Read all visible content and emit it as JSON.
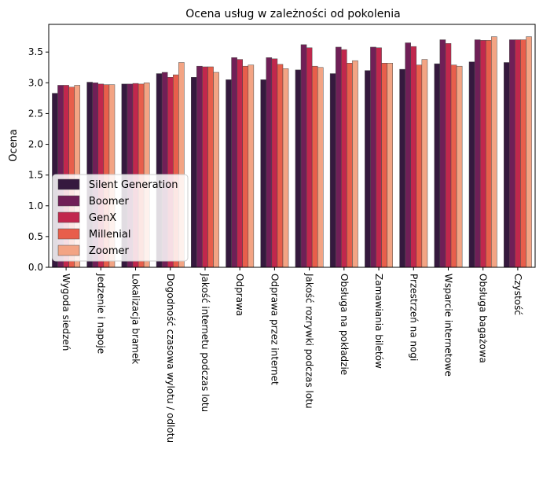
{
  "chart_data": {
    "type": "bar",
    "title": "Ocena usług w zależności od pokolenia",
    "xlabel": "",
    "ylabel": "Ocena",
    "ylim": [
      0,
      3.95
    ],
    "yticks": [
      "0.0",
      "0.5",
      "1.0",
      "1.5",
      "2.0",
      "2.5",
      "3.0",
      "3.5"
    ],
    "grid": false,
    "legend_position": "lower-left",
    "categories": [
      "Wygoda siedzeń",
      "Jedzenie i napoje",
      "Lokalizacja bramek",
      "Dogodność czasowa wylotu / odlotu",
      "Jakość internetu podczas lotu",
      "Odprawa",
      "Odprawa przez internet",
      "Jakość rozrywki podczas lotu",
      "Obsługa na pokładzie",
      "Zamawiania biletów",
      "Przestrzeń na nogi",
      "Wsparcie internetowe",
      "Obsługa bagażowa",
      "Czystość"
    ],
    "series": [
      {
        "name": "Silent Generation",
        "color": "#35193e",
        "values": [
          2.83,
          3.01,
          2.98,
          3.15,
          3.09,
          3.05,
          3.05,
          3.21,
          3.15,
          3.2,
          3.22,
          3.31,
          3.34,
          3.33
        ]
      },
      {
        "name": "Boomer",
        "color": "#701f57",
        "values": [
          2.96,
          3.0,
          2.98,
          3.17,
          3.27,
          3.41,
          3.41,
          3.62,
          3.58,
          3.58,
          3.65,
          3.7,
          3.7,
          3.7
        ]
      },
      {
        "name": "GenX",
        "color": "#c1274d",
        "values": [
          2.96,
          2.98,
          2.99,
          3.09,
          3.26,
          3.38,
          3.39,
          3.57,
          3.54,
          3.57,
          3.59,
          3.64,
          3.69,
          3.7
        ]
      },
      {
        "name": "Millenial",
        "color": "#e85e4b",
        "values": [
          2.93,
          2.97,
          2.98,
          3.13,
          3.26,
          3.27,
          3.3,
          3.27,
          3.32,
          3.32,
          3.29,
          3.29,
          3.69,
          3.7
        ]
      },
      {
        "name": "Zoomer",
        "color": "#f3a484",
        "values": [
          2.96,
          2.97,
          3.0,
          3.33,
          3.17,
          3.29,
          3.23,
          3.25,
          3.36,
          3.32,
          3.38,
          3.27,
          3.75,
          3.75
        ]
      }
    ]
  }
}
